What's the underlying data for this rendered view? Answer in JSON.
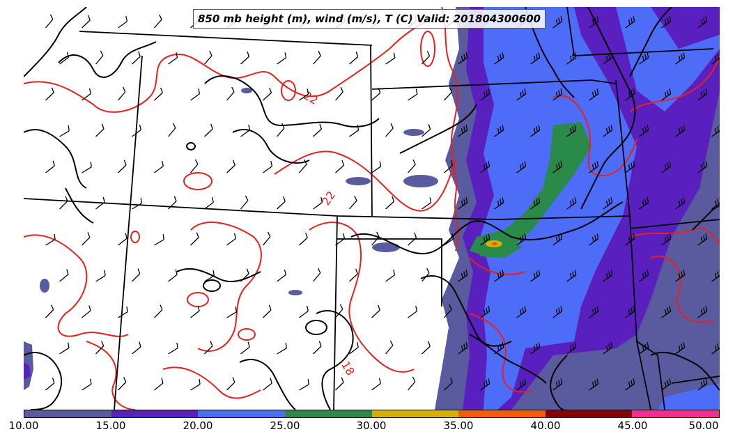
{
  "title": "850 mb height (m), wind (m/s), T (C) Valid: 201804300600",
  "contour_labels": [
    "22",
    "22",
    "18"
  ],
  "colorbar": {
    "colors": [
      "#5a5a9e",
      "#5a1fbf",
      "#4d6cf7",
      "#2a8a4a",
      "#d4b000",
      "#f25c05",
      "#8b0000",
      "#f0308f"
    ],
    "ticks": [
      "10.00",
      "15.00",
      "20.00",
      "25.00",
      "30.00",
      "35.00",
      "40.00",
      "45.00",
      "50.00"
    ]
  },
  "colors": {
    "temperature_contour": "#e8201e",
    "height_contour": "#000000",
    "state_border": "#000000"
  }
}
